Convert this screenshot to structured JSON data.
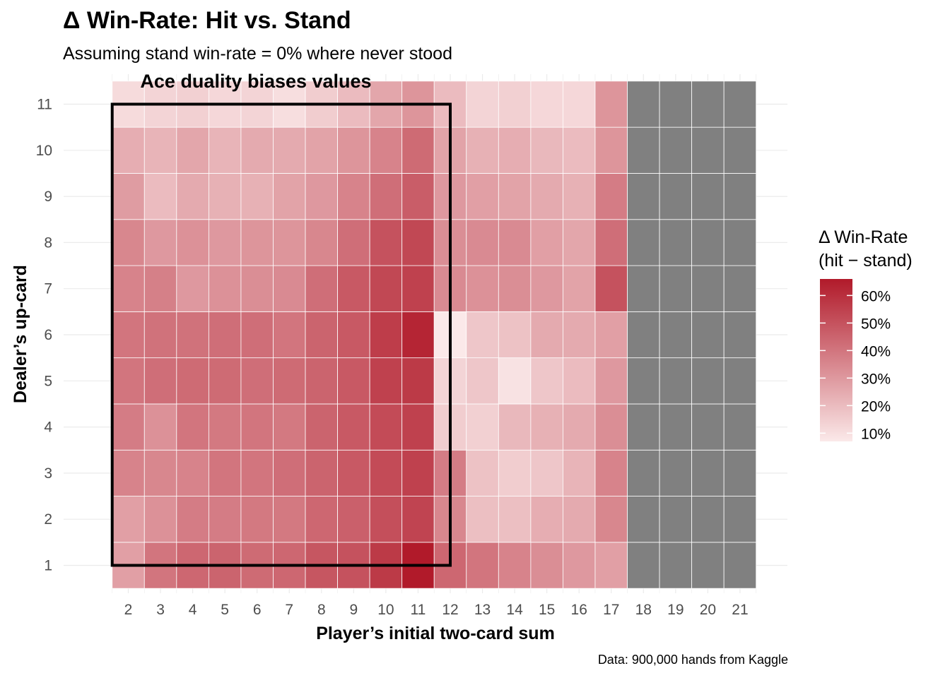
{
  "title": "Δ Win-Rate: Hit vs. Stand",
  "subtitle": "Assuming stand win-rate = 0% where never stood",
  "caption": "Data: 900,000 hands from Kaggle",
  "colors": {
    "low": "#fbe9e9",
    "high": "#b11a2a",
    "na": "#808080",
    "grid": "#ebebeb",
    "annotation": "#000000"
  },
  "chart_data": {
    "type": "heatmap",
    "xlabel": "Player’s initial two-card sum",
    "ylabel": "Dealer’s up-card",
    "x": [
      2,
      3,
      4,
      5,
      6,
      7,
      8,
      9,
      10,
      11,
      12,
      13,
      14,
      15,
      16,
      17,
      18,
      19,
      20,
      21
    ],
    "y": [
      1,
      2,
      3,
      4,
      5,
      6,
      7,
      8,
      9,
      10,
      11
    ],
    "z_range": [
      0.07,
      0.66
    ],
    "z_unit": "Δ win-rate (fraction)",
    "z_rows_by_dealer_upcard": {
      "1": [
        0.28,
        0.4,
        0.44,
        0.45,
        0.43,
        0.44,
        0.49,
        0.5,
        0.57,
        0.66,
        0.44,
        0.4,
        0.36,
        0.33,
        0.3,
        0.28,
        null,
        null,
        null,
        null
      ],
      "2": [
        0.28,
        0.32,
        0.38,
        0.38,
        0.39,
        0.39,
        0.44,
        0.46,
        0.51,
        0.54,
        0.35,
        0.19,
        0.19,
        0.24,
        0.25,
        0.35,
        null,
        null,
        null,
        null
      ],
      "3": [
        0.36,
        0.35,
        0.36,
        0.4,
        0.4,
        0.42,
        0.45,
        0.48,
        0.52,
        0.55,
        0.38,
        0.18,
        0.15,
        0.17,
        0.22,
        0.36,
        null,
        null,
        null,
        null
      ],
      "4": [
        0.38,
        0.32,
        0.4,
        0.39,
        0.4,
        0.39,
        0.45,
        0.48,
        0.52,
        0.55,
        0.15,
        0.14,
        0.21,
        0.23,
        0.25,
        0.33,
        null,
        null,
        null,
        null
      ],
      "5": [
        0.4,
        0.42,
        0.43,
        0.43,
        0.42,
        0.43,
        0.45,
        0.48,
        0.55,
        0.57,
        0.13,
        0.17,
        0.09,
        0.17,
        0.2,
        0.3,
        null,
        null,
        null,
        null
      ],
      "6": [
        0.4,
        0.41,
        0.41,
        0.42,
        0.42,
        0.4,
        0.45,
        0.48,
        0.56,
        0.63,
        0.07,
        0.17,
        0.18,
        0.25,
        0.25,
        0.28,
        null,
        null,
        null,
        null
      ],
      "7": [
        0.36,
        0.37,
        0.3,
        0.32,
        0.33,
        0.34,
        0.42,
        0.48,
        0.53,
        0.55,
        0.34,
        0.32,
        0.33,
        0.3,
        0.27,
        0.5,
        null,
        null,
        null,
        null
      ],
      "8": [
        0.35,
        0.3,
        0.32,
        0.3,
        0.31,
        0.31,
        0.35,
        0.42,
        0.5,
        0.53,
        0.33,
        0.34,
        0.34,
        0.28,
        0.26,
        0.42,
        null,
        null,
        null,
        null
      ],
      "9": [
        0.29,
        0.2,
        0.25,
        0.23,
        0.23,
        0.27,
        0.3,
        0.36,
        0.42,
        0.47,
        0.3,
        0.28,
        0.27,
        0.25,
        0.23,
        0.38,
        null,
        null,
        null,
        null
      ],
      "10": [
        0.24,
        0.22,
        0.26,
        0.22,
        0.25,
        0.25,
        0.27,
        0.31,
        0.36,
        0.43,
        0.27,
        0.23,
        0.24,
        0.21,
        0.2,
        0.31,
        null,
        null,
        null,
        null
      ],
      "11": [
        0.11,
        0.13,
        0.14,
        0.12,
        0.13,
        0.1,
        0.15,
        0.2,
        0.26,
        0.31,
        0.2,
        0.13,
        0.14,
        0.12,
        0.12,
        0.31,
        null,
        null,
        null,
        null
      ]
    },
    "x_ticks": [
      "2",
      "3",
      "4",
      "5",
      "6",
      "7",
      "8",
      "9",
      "10",
      "11",
      "12",
      "13",
      "14",
      "15",
      "16",
      "17",
      "18",
      "19",
      "20",
      "21"
    ],
    "y_ticks": [
      "1",
      "2",
      "3",
      "4",
      "5",
      "6",
      "7",
      "8",
      "9",
      "10",
      "11"
    ],
    "legend": {
      "title": "Δ Win-Rate\n(hit − stand)",
      "placement": "right",
      "breaks": [
        0.1,
        0.2,
        0.3,
        0.4,
        0.5,
        0.6
      ],
      "labels": [
        "10%",
        "20%",
        "30%",
        "40%",
        "50%",
        "60%"
      ]
    },
    "annotation": {
      "label": "Ace duality biases values",
      "rect_x": [
        1.5,
        12
      ],
      "rect_y": [
        1,
        11
      ]
    }
  }
}
